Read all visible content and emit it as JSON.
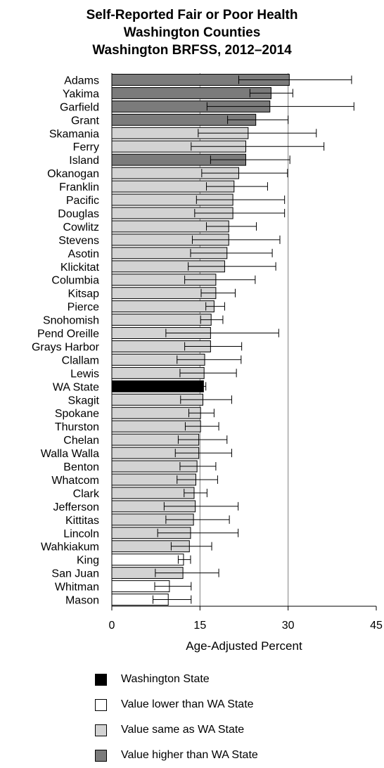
{
  "titles": [
    "Self-Reported Fair or Poor Health",
    "Washington Counties",
    "Washington BRFSS, 2012–2014"
  ],
  "colors": {
    "state": "#000000",
    "lower": "#ffffff",
    "same": "#d3d3d3",
    "higher": "#7b7b7b",
    "axis": "#000000",
    "grid": "#7f7f7f"
  },
  "legend": [
    {
      "key": "state",
      "label": "Washington State"
    },
    {
      "key": "lower",
      "label": "Value lower than WA State"
    },
    {
      "key": "same",
      "label": "Value same as WA State"
    },
    {
      "key": "higher",
      "label": "Value higher than WA State"
    }
  ],
  "chart_data": {
    "type": "bar",
    "orientation": "horizontal",
    "title": "Self-Reported Fair or Poor Health Washington Counties Washington BRFSS, 2012–2014",
    "xlabel": "Age-Adjusted Percent",
    "xlim": [
      0,
      45
    ],
    "xticks": [
      0,
      15,
      30,
      45
    ],
    "grid": "vertical at 15 and 30",
    "error_bars": true,
    "categories": [
      "Adams",
      "Yakima",
      "Garfield",
      "Grant",
      "Skamania",
      "Ferry",
      "Island",
      "Okanogan",
      "Franklin",
      "Pacific",
      "Douglas",
      "Cowlitz",
      "Stevens",
      "Asotin",
      "Klickitat",
      "Columbia",
      "Kitsap",
      "Pierce",
      "Snohomish",
      "Pend Oreille",
      "Grays Harbor",
      "Clallam",
      "Lewis",
      "WA State",
      "Skagit",
      "Spokane",
      "Thurston",
      "Chelan",
      "Walla Walla",
      "Benton",
      "Whatcom",
      "Clark",
      "Jefferson",
      "Kittitas",
      "Lincoln",
      "Wahkiakum",
      "King",
      "San Juan",
      "Whitman",
      "Mason"
    ],
    "values": [
      30.2,
      27.1,
      26.9,
      24.5,
      23.2,
      22.8,
      22.8,
      21.6,
      20.8,
      20.6,
      20.6,
      19.9,
      19.9,
      19.6,
      19.2,
      17.7,
      17.7,
      17.4,
      16.9,
      16.8,
      16.8,
      15.8,
      15.7,
      15.6,
      15.5,
      15.1,
      15.1,
      14.8,
      14.8,
      14.5,
      14.3,
      14.0,
      14.2,
      13.9,
      13.4,
      13.2,
      12.2,
      12.1,
      9.8,
      9.6
    ],
    "ci_low": [
      21.6,
      23.5,
      16.2,
      19.7,
      14.7,
      13.5,
      16.8,
      15.3,
      16.1,
      14.4,
      14.1,
      16.1,
      13.7,
      13.4,
      13.0,
      12.4,
      15.2,
      16.0,
      15.1,
      9.2,
      12.4,
      11.1,
      11.6,
      15.3,
      11.7,
      13.1,
      12.5,
      11.3,
      10.8,
      11.6,
      11.1,
      12.3,
      8.9,
      9.2,
      7.8,
      10.1,
      11.3,
      7.4,
      7.3,
      7.0
    ],
    "ci_high": [
      40.8,
      30.8,
      41.2,
      30.0,
      34.8,
      36.1,
      30.3,
      29.9,
      26.5,
      29.4,
      29.4,
      24.6,
      28.6,
      27.3,
      27.9,
      24.4,
      21.0,
      19.2,
      18.9,
      28.4,
      22.1,
      22.0,
      21.2,
      16.0,
      20.4,
      17.4,
      18.2,
      19.6,
      20.4,
      17.7,
      18.0,
      16.2,
      21.5,
      20.0,
      21.5,
      17.0,
      13.4,
      18.2,
      13.5,
      13.5
    ],
    "status": [
      "higher",
      "higher",
      "higher",
      "higher",
      "same",
      "same",
      "higher",
      "same",
      "same",
      "same",
      "same",
      "same",
      "same",
      "same",
      "same",
      "same",
      "same",
      "same",
      "same",
      "same",
      "same",
      "same",
      "same",
      "state",
      "same",
      "same",
      "same",
      "same",
      "same",
      "same",
      "same",
      "same",
      "same",
      "same",
      "same",
      "same",
      "lower",
      "same",
      "lower",
      "lower"
    ]
  }
}
